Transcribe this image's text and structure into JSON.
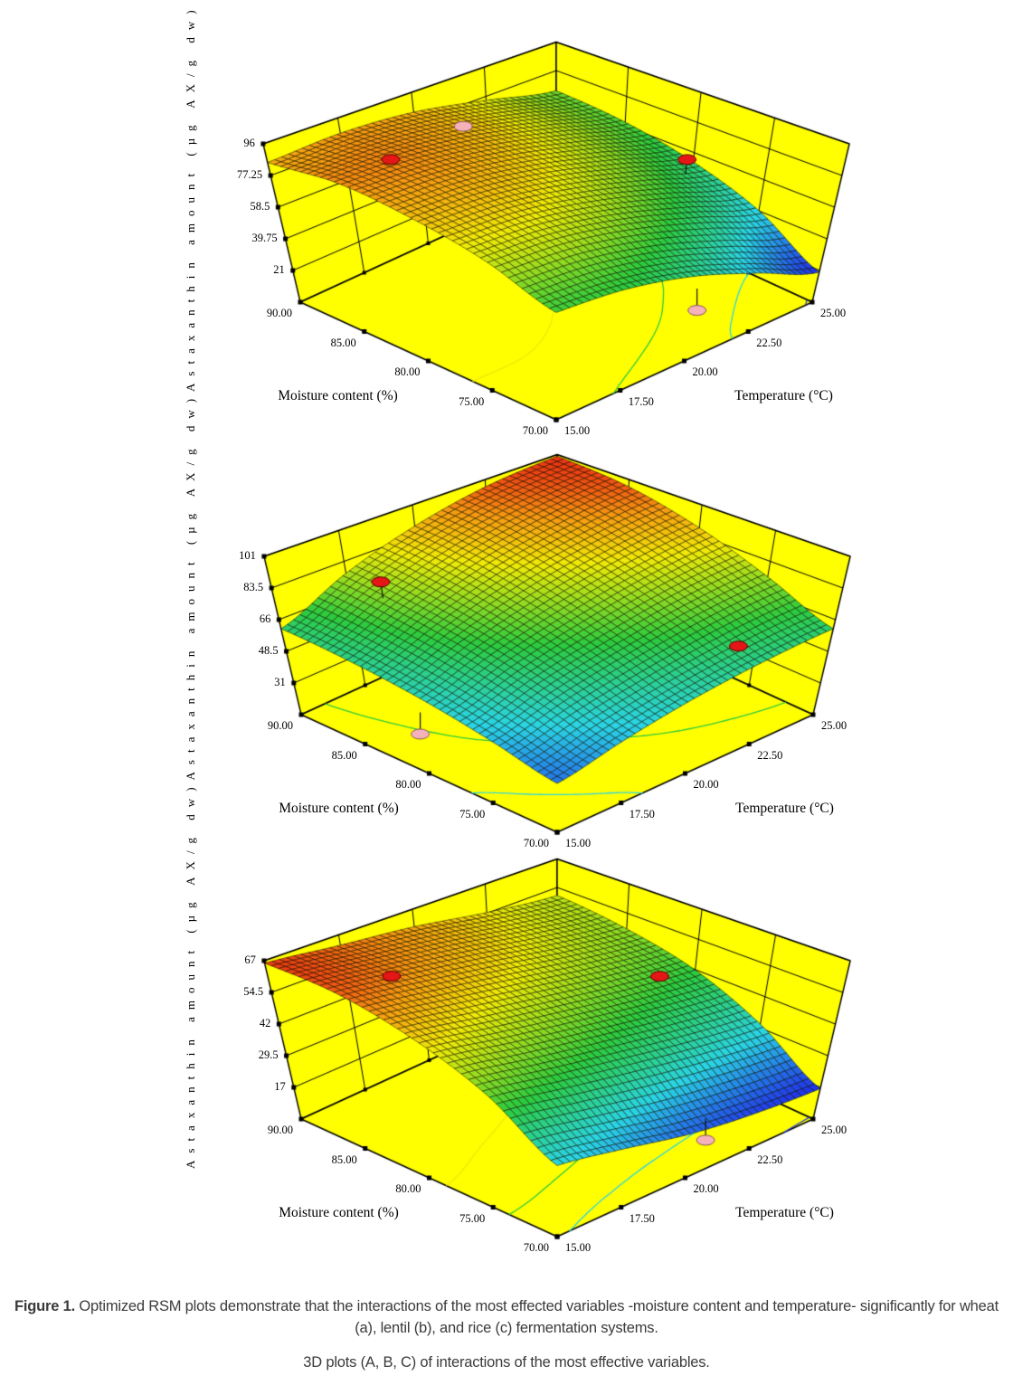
{
  "figure": {
    "caption_label": "Figure 1.",
    "caption_text": "Optimized RSM plots demonstrate that the interactions of the most effected variables -moisture content and temperature- significantly for wheat (a), lentil (b), and rice (c) fermentation systems.",
    "caption_note": "3D plots (A, B, C) of interactions of the most effective variables."
  },
  "colors": {
    "box_fill": "#ffff00",
    "box_line": "#000000",
    "palette_stops": [
      [
        0.0,
        "#2036e8"
      ],
      [
        0.25,
        "#2ad4e6"
      ],
      [
        0.5,
        "#2ccb3f"
      ],
      [
        0.75,
        "#f0ea08"
      ],
      [
        0.88,
        "#f59a12"
      ],
      [
        1.0,
        "#ea2515"
      ]
    ],
    "design_point_red": "#e51616",
    "design_point_pink": "#f5b2ba"
  },
  "chart_data": [
    {
      "id": "a",
      "system": "wheat",
      "type": "surface",
      "zlabel": "Astaxanthin amount (µg AX/g dw)",
      "xlabel": "Moisture content (%)",
      "ylabel": "Temperature (°C)",
      "moisture_tick_labels": [
        "90.00",
        "85.00",
        "80.00",
        "75.00",
        "70.00"
      ],
      "temperature_tick_labels": [
        "15.00",
        "17.50",
        "20.00",
        "22.50",
        "25.00"
      ],
      "z_tick_labels": [
        "21",
        "39.75",
        "58.5",
        "77.25",
        "96"
      ],
      "z_ticks": [
        21,
        39.75,
        58.5,
        77.25,
        96
      ],
      "z_range": [
        21,
        96
      ],
      "moisture_values": [
        70,
        75,
        80,
        85,
        90
      ],
      "temperature_values": [
        15,
        17.5,
        20,
        22.5,
        25
      ],
      "grid_note": "rows = moisture 70..90, cols = temperature 15..25",
      "surface_z": [
        [
          60,
          58,
          50,
          36,
          20
        ],
        [
          74,
          73,
          66,
          54,
          40
        ],
        [
          83,
          83,
          77,
          66,
          53
        ],
        [
          88,
          88,
          83,
          73,
          61
        ],
        [
          85,
          87,
          84,
          75,
          64
        ]
      ],
      "design_points": [
        {
          "m": 85,
          "t": 16.8,
          "kind": "red",
          "pos": "surface",
          "dz": 0
        },
        {
          "m": 79,
          "t": 24.2,
          "kind": "red",
          "pos": "above",
          "dz": 9
        },
        {
          "m": 86.5,
          "t": 20,
          "kind": "pink",
          "pos": "surface",
          "dz": 0
        },
        {
          "m": 73.8,
          "t": 22.4,
          "kind": "pink",
          "pos": "floor",
          "dz": 0
        }
      ]
    },
    {
      "id": "b",
      "system": "lentil",
      "type": "surface",
      "zlabel": "Astaxanthin amount (µg AX/g dw)",
      "xlabel": "Moisture content (%)",
      "ylabel": "Temperature (°C)",
      "moisture_tick_labels": [
        "90.00",
        "85.00",
        "80.00",
        "75.00",
        "70.00"
      ],
      "temperature_tick_labels": [
        "15.00",
        "17.50",
        "20.00",
        "22.50",
        "25.00"
      ],
      "z_tick_labels": [
        "31",
        "48.5",
        "66",
        "83.5",
        "101"
      ],
      "z_ticks": [
        31,
        48.5,
        66,
        83.5,
        101
      ],
      "z_range": [
        31,
        101
      ],
      "moisture_values": [
        70,
        75,
        80,
        85,
        90
      ],
      "temperature_values": [
        15,
        17.5,
        20,
        22.5,
        25
      ],
      "grid_note": "rows = moisture 70..90, cols = temperature 15..25",
      "surface_z": [
        [
          38,
          46,
          53,
          58,
          61
        ],
        [
          46,
          56,
          64,
          71,
          75
        ],
        [
          53,
          65,
          75,
          83,
          88
        ],
        [
          58,
          72,
          84,
          92,
          97
        ],
        [
          61,
          77,
          89,
          97,
          100
        ]
      ],
      "design_points": [
        {
          "m": 87,
          "t": 17.3,
          "kind": "red",
          "pos": "above",
          "dz": 9
        },
        {
          "m": 71.5,
          "t": 22.3,
          "kind": "red",
          "pos": "surface",
          "dz": 0
        },
        {
          "m": 83.7,
          "t": 16.5,
          "kind": "pink",
          "pos": "floor",
          "dz": 0
        }
      ]
    },
    {
      "id": "c",
      "system": "rice",
      "type": "surface",
      "zlabel": "Astaxanthin amount (µg AX/g dw)",
      "xlabel": "Moisture content (%)",
      "ylabel": "Temperature (°C)",
      "moisture_tick_labels": [
        "90.00",
        "85.00",
        "80.00",
        "75.00",
        "70.00"
      ],
      "temperature_tick_labels": [
        "15.00",
        "17.50",
        "20.00",
        "22.50",
        "25.00"
      ],
      "z_tick_labels": [
        "17",
        "29.5",
        "42",
        "54.5",
        "67"
      ],
      "z_ticks": [
        17,
        29.5,
        42,
        54.5,
        67
      ],
      "z_range": [
        17,
        67
      ],
      "moisture_values": [
        70,
        75,
        80,
        85,
        90
      ],
      "temperature_values": [
        15,
        17.5,
        20,
        22.5,
        25
      ],
      "grid_note": "rows = moisture 70..90, cols = temperature 15..25",
      "surface_z": [
        [
          30,
          26,
          21,
          18,
          16.5
        ],
        [
          46,
          42,
          38,
          34,
          31
        ],
        [
          57,
          53,
          49,
          45,
          42
        ],
        [
          64,
          61,
          57,
          52,
          48
        ],
        [
          66,
          63,
          60,
          55,
          51
        ]
      ],
      "design_points": [
        {
          "m": 85,
          "t": 16.8,
          "kind": "red",
          "pos": "surface",
          "dz": 0
        },
        {
          "m": 80,
          "t": 23.7,
          "kind": "red",
          "pos": "surface",
          "dz": 0
        },
        {
          "m": 72.4,
          "t": 22,
          "kind": "pink",
          "pos": "floor",
          "dz": 0
        }
      ]
    }
  ]
}
